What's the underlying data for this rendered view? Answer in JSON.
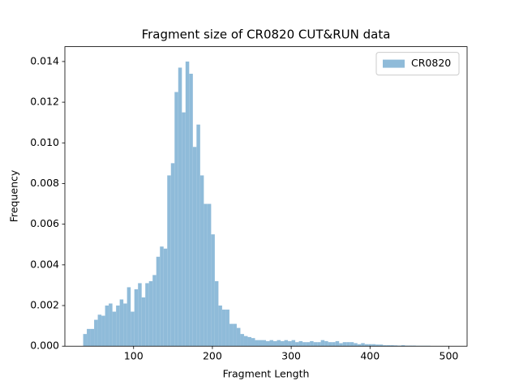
{
  "chart_data": {
    "type": "histogram",
    "title": "Fragment size of CR0820 CUT&RUN data",
    "x_label": "Fragment Length",
    "y_label": "Frequency",
    "bins": [
      36,
      40.64,
      45.28,
      49.92,
      54.56,
      59.2,
      63.84,
      68.48,
      73.12,
      77.76,
      82.4,
      87.04,
      91.68,
      96.32,
      100.96,
      105.6,
      110.24,
      114.88,
      119.52,
      124.16,
      128.8,
      133.44,
      138.08,
      142.72,
      147.36,
      152,
      156.64,
      161.28,
      165.92,
      170.56,
      175.2,
      179.84,
      184.48,
      189.12,
      193.76,
      198.4,
      203.04,
      207.68,
      212.32,
      216.96,
      221.6,
      226.24,
      230.88,
      235.52,
      240.16,
      244.8,
      249.44,
      254.08,
      258.72,
      263.36,
      268,
      272.64,
      277.28,
      281.92,
      286.56,
      291.2,
      295.84,
      300.48,
      305.12,
      309.76,
      314.4,
      319.04,
      323.68,
      328.32,
      332.96,
      337.6,
      342.24,
      346.88,
      351.52,
      356.16,
      360.8,
      365.44,
      370.08,
      374.72,
      379.36,
      384,
      388.64,
      393.28,
      397.92,
      402.56,
      407.2,
      411.84,
      416.48,
      421.12,
      425.76,
      430.4,
      435.04,
      439.68,
      444.32,
      448.96,
      453.6,
      458.24,
      462.88,
      467.52,
      472.16,
      476.8,
      481.44,
      486.08,
      490.72,
      495.36,
      500
    ],
    "series": [
      {
        "name": "CR0820",
        "color": "#8fbbd9",
        "values": [
          0.0006,
          0.00085,
          0.00085,
          0.0013,
          0.00155,
          0.0015,
          0.002,
          0.0021,
          0.0017,
          0.002,
          0.0023,
          0.0021,
          0.0029,
          0.0017,
          0.0028,
          0.0031,
          0.0024,
          0.0031,
          0.0032,
          0.0035,
          0.0044,
          0.0049,
          0.0048,
          0.0084,
          0.009,
          0.0125,
          0.0137,
          0.0115,
          0.014,
          0.0134,
          0.0098,
          0.0109,
          0.0084,
          0.007,
          0.007,
          0.0055,
          0.0032,
          0.002,
          0.0018,
          0.0018,
          0.0011,
          0.0011,
          0.0009,
          0.0006,
          0.0005,
          0.00045,
          0.0004,
          0.0003,
          0.0003,
          0.0003,
          0.00025,
          0.0003,
          0.00025,
          0.0003,
          0.00025,
          0.0003,
          0.00025,
          0.0003,
          0.0002,
          0.00025,
          0.0002,
          0.0002,
          0.00025,
          0.0002,
          0.0002,
          0.0003,
          0.00025,
          0.0002,
          0.0002,
          0.00025,
          0.00015,
          0.0002,
          0.0002,
          0.0002,
          0.00015,
          0.0001,
          0.00015,
          0.0001,
          0.0001,
          0.0001,
          8e-05,
          8e-05,
          5e-05,
          5e-05,
          5e-05,
          4e-05,
          3e-05,
          5e-05,
          3e-05,
          3e-05,
          3e-05,
          2e-05,
          2e-05,
          2e-05,
          2e-05,
          1e-05,
          1e-05,
          1e-05,
          1e-05,
          1e-05
        ]
      }
    ],
    "xlim": [
      12.8,
      523.2
    ],
    "ylim": [
      0,
      0.01473
    ],
    "xticks": [
      100,
      200,
      300,
      400,
      500
    ],
    "yticks": [
      {
        "value": 0,
        "label": "0.000"
      },
      {
        "value": 0.002,
        "label": "0.002"
      },
      {
        "value": 0.004,
        "label": "0.004"
      },
      {
        "value": 0.006,
        "label": "0.006"
      },
      {
        "value": 0.008,
        "label": "0.008"
      },
      {
        "value": 0.01,
        "label": "0.010"
      },
      {
        "value": 0.012,
        "label": "0.012"
      },
      {
        "value": 0.014,
        "label": "0.014"
      }
    ],
    "legend": "upper right"
  }
}
